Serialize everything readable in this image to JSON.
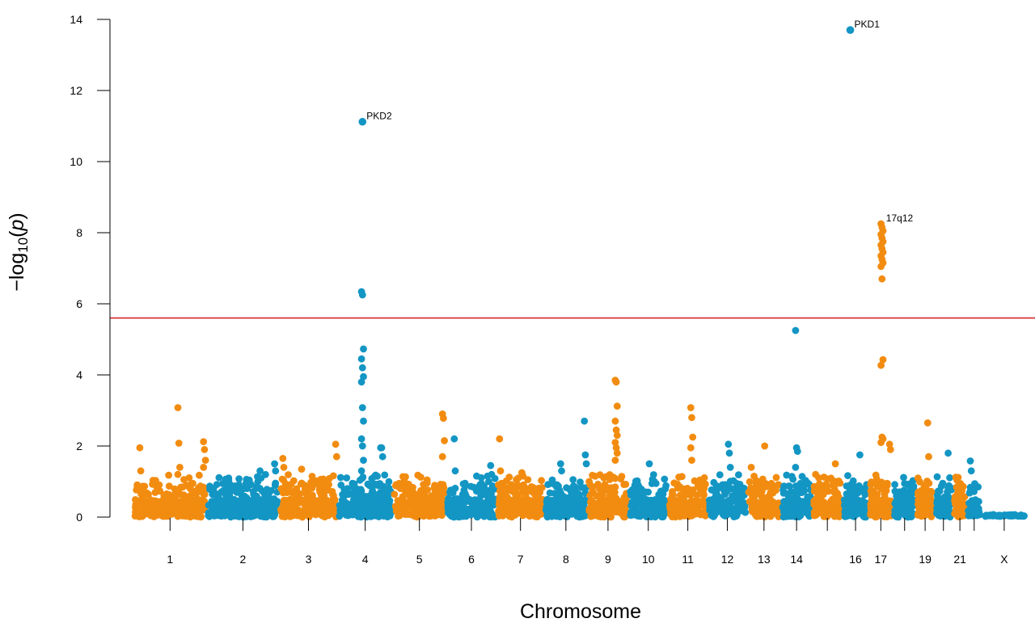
{
  "chart_data": {
    "type": "scatter",
    "subtype": "manhattan",
    "xlabel": "Chromosome",
    "ylabel_prefix": "−log",
    "ylabel_sub": "10",
    "ylabel_var": "p",
    "ylim": [
      0,
      14
    ],
    "yticks": [
      0,
      2,
      4,
      6,
      8,
      10,
      12,
      14
    ],
    "threshold": 5.6,
    "threshold_color": "#d62728",
    "grid": false,
    "colors": {
      "even": "#f28c10",
      "odd": "#1396c4"
    },
    "chromosomes": [
      {
        "id": "1",
        "label": "1",
        "size": 1.0,
        "color": "even"
      },
      {
        "id": "2",
        "label": "2",
        "size": 0.99,
        "color": "odd"
      },
      {
        "id": "3",
        "label": "3",
        "size": 0.8,
        "color": "even"
      },
      {
        "id": "4",
        "label": "4",
        "size": 0.75,
        "color": "odd"
      },
      {
        "id": "5",
        "label": "5",
        "size": 0.73,
        "color": "even"
      },
      {
        "id": "6",
        "label": "6",
        "size": 0.69,
        "color": "odd"
      },
      {
        "id": "7",
        "label": "7",
        "size": 0.65,
        "color": "even"
      },
      {
        "id": "8",
        "label": "8",
        "size": 0.59,
        "color": "odd"
      },
      {
        "id": "9",
        "label": "9",
        "size": 0.56,
        "color": "even"
      },
      {
        "id": "10",
        "label": "10",
        "size": 0.54,
        "color": "odd"
      },
      {
        "id": "11",
        "label": "11",
        "size": 0.54,
        "color": "even"
      },
      {
        "id": "12",
        "label": "12",
        "size": 0.54,
        "color": "odd"
      },
      {
        "id": "13",
        "label": "13",
        "size": 0.46,
        "color": "even"
      },
      {
        "id": "14",
        "label": "14",
        "size": 0.43,
        "color": "odd"
      },
      {
        "id": "15",
        "label": "",
        "size": 0.41,
        "color": "even"
      },
      {
        "id": "16",
        "label": "16",
        "size": 0.36,
        "color": "odd"
      },
      {
        "id": "17",
        "label": "17",
        "size": 0.33,
        "color": "even"
      },
      {
        "id": "18",
        "label": "",
        "size": 0.32,
        "color": "odd"
      },
      {
        "id": "19",
        "label": "19",
        "size": 0.24,
        "color": "even"
      },
      {
        "id": "20",
        "label": "",
        "size": 0.26,
        "color": "odd"
      },
      {
        "id": "21",
        "label": "21",
        "size": 0.19,
        "color": "even"
      },
      {
        "id": "22",
        "label": "",
        "size": 0.2,
        "color": "odd"
      },
      {
        "id": "X",
        "label": "X",
        "size": 0.62,
        "color": "odd",
        "flat": true
      }
    ],
    "peaks": [
      {
        "chr": "1",
        "pos": 0.62,
        "values": [
          3.08,
          2.08,
          1.4,
          1.2
        ]
      },
      {
        "chr": "1",
        "pos": 0.1,
        "values": [
          1.95,
          1.3
        ]
      },
      {
        "chr": "1",
        "pos": 0.97,
        "values": [
          2.12,
          1.9,
          1.6,
          1.4
        ]
      },
      {
        "chr": "2",
        "pos": 0.75,
        "values": [
          1.3,
          1.1
        ]
      },
      {
        "chr": "2",
        "pos": 0.95,
        "values": [
          1.5,
          1.3
        ]
      },
      {
        "chr": "3",
        "pos": 0.08,
        "values": [
          1.65,
          1.4
        ]
      },
      {
        "chr": "3",
        "pos": 0.4,
        "values": [
          1.35
        ]
      },
      {
        "chr": "3",
        "pos": 0.98,
        "values": [
          2.05,
          1.7
        ]
      },
      {
        "chr": "4",
        "pos": 0.45,
        "values": [
          6.34,
          6.25,
          4.73,
          4.45,
          4.2,
          3.95,
          3.8,
          3.08,
          2.7,
          2.2,
          2.0,
          1.6,
          1.3,
          1.1
        ]
      },
      {
        "chr": "4",
        "pos": 0.8,
        "values": [
          1.95,
          1.95,
          1.7
        ]
      },
      {
        "chr": "5",
        "pos": 0.95,
        "values": [
          2.9,
          2.78,
          2.15,
          1.7
        ]
      },
      {
        "chr": "6",
        "pos": 0.18,
        "values": [
          2.2,
          1.3
        ]
      },
      {
        "chr": "6",
        "pos": 0.9,
        "values": [
          1.45,
          1.2
        ]
      },
      {
        "chr": "7",
        "pos": 0.08,
        "values": [
          2.2,
          1.3
        ]
      },
      {
        "chr": "7",
        "pos": 0.55,
        "values": [
          1.25
        ]
      },
      {
        "chr": "8",
        "pos": 0.4,
        "values": [
          1.5,
          1.3
        ]
      },
      {
        "chr": "8",
        "pos": 0.95,
        "values": [
          2.7,
          1.75,
          1.5
        ]
      },
      {
        "chr": "9",
        "pos": 0.7,
        "values": [
          3.85,
          3.8,
          3.12,
          2.7,
          2.45,
          2.3,
          2.1,
          1.95,
          1.8,
          1.6
        ]
      },
      {
        "chr": "10",
        "pos": 0.55,
        "values": [
          1.5
        ]
      },
      {
        "chr": "11",
        "pos": 0.6,
        "values": [
          3.08,
          2.8,
          2.25,
          1.95,
          1.6
        ]
      },
      {
        "chr": "12",
        "pos": 0.55,
        "values": [
          2.05,
          1.8,
          1.4
        ]
      },
      {
        "chr": "13",
        "pos": 0.55,
        "values": [
          2.0
        ]
      },
      {
        "chr": "13",
        "pos": 0.15,
        "values": [
          1.4
        ]
      },
      {
        "chr": "14",
        "pos": 0.5,
        "values": [
          5.25,
          1.95,
          1.85,
          1.4
        ]
      },
      {
        "chr": "15",
        "pos": 0.8,
        "values": [
          1.5
        ]
      },
      {
        "chr": "16",
        "pos": 0.7,
        "values": [
          1.75
        ]
      },
      {
        "chr": "17",
        "pos": 0.55,
        "values": [
          8.25,
          8.15,
          8.05,
          7.95,
          7.85,
          7.75,
          7.65,
          7.55,
          7.45,
          7.35,
          7.25,
          7.15,
          7.05,
          6.7,
          4.43,
          4.27,
          2.25,
          2.2,
          2.1
        ]
      },
      {
        "chr": "17",
        "pos": 0.9,
        "values": [
          2.05,
          1.9
        ]
      },
      {
        "chr": "19",
        "pos": 0.7,
        "values": [
          2.65,
          1.7
        ]
      },
      {
        "chr": "20",
        "pos": 0.8,
        "values": [
          1.8
        ]
      },
      {
        "chr": "22",
        "pos": 0.3,
        "values": [
          1.58,
          1.3
        ]
      }
    ],
    "annotations": [
      {
        "chr": "4",
        "pos": 0.45,
        "value": 11.12,
        "label": "PKD2"
      },
      {
        "chr": "16",
        "pos": 0.3,
        "value": 13.7,
        "label": "PKD1"
      },
      {
        "chr": "17",
        "pos": 0.55,
        "value": 8.25,
        "label": "17q12",
        "label_only": true
      }
    ]
  }
}
